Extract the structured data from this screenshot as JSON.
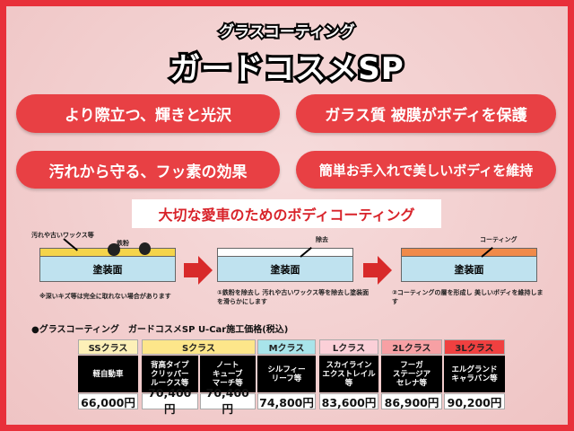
{
  "header": {
    "subtitle": "グラスコーティング",
    "title": "ガードコスメSP"
  },
  "features": [
    "より際立つ、輝きと光沢",
    "ガラス質 被膜がボディを保護",
    "汚れから守る、フッ素の効果",
    "簡単お手入れで美しいボディを維持"
  ],
  "banner": "大切な愛車のためのボディコーティング",
  "diagrams": [
    {
      "surface": "塗装面",
      "label1": "汚れや古いワックス等",
      "label2": "鉄粉",
      "layer_color": "#f5d44a",
      "caption": "※深いキズ等は完全に取れない場合があります"
    },
    {
      "surface": "塗装面",
      "label1": "除去",
      "layer_color": "#ffffff",
      "caption": "①鉄粉を除去し 汚れや古いワックス等を除去し塗装面を滑らかにします"
    },
    {
      "surface": "塗装面",
      "label1": "コーティング",
      "layer_color": "#f08a4a",
      "caption": "②コーティングの層を形成し 美しいボディを維持します"
    }
  ],
  "price_heading": "●グラスコーティング　ガードコスメSP U-Car施工価格(税込)",
  "classes": [
    {
      "name": "SSクラス",
      "color": "#fdf0b8",
      "cars": [
        "軽自動車"
      ],
      "prices": [
        "66,000円"
      ]
    },
    {
      "name": "Sクラス",
      "color": "#fde68a",
      "cars": [
        "背高タイプ\nクリッパー\nルークス等",
        "ノート\nキューブ\nマーチ等"
      ],
      "prices": [
        "70,400円",
        "70,400円"
      ]
    },
    {
      "name": "Mクラス",
      "color": "#a8e4ea",
      "cars": [
        "シルフィー\nリーフ等"
      ],
      "prices": [
        "74,800円"
      ]
    },
    {
      "name": "Lクラス",
      "color": "#fbd0d8",
      "cars": [
        "スカイライン\nエクストレイル等"
      ],
      "prices": [
        "83,600円"
      ]
    },
    {
      "name": "2Lクラス",
      "color": "#f7a0a4",
      "cars": [
        "フーガ\nステージア\nセレナ等"
      ],
      "prices": [
        "86,900円"
      ]
    },
    {
      "name": "3Lクラス",
      "color": "#f04040",
      "cars": [
        "エルグランド\nキャラバン等"
      ],
      "prices": [
        "90,200円"
      ]
    }
  ],
  "colors": {
    "accent": "#e84044",
    "border": "#e8303a"
  }
}
